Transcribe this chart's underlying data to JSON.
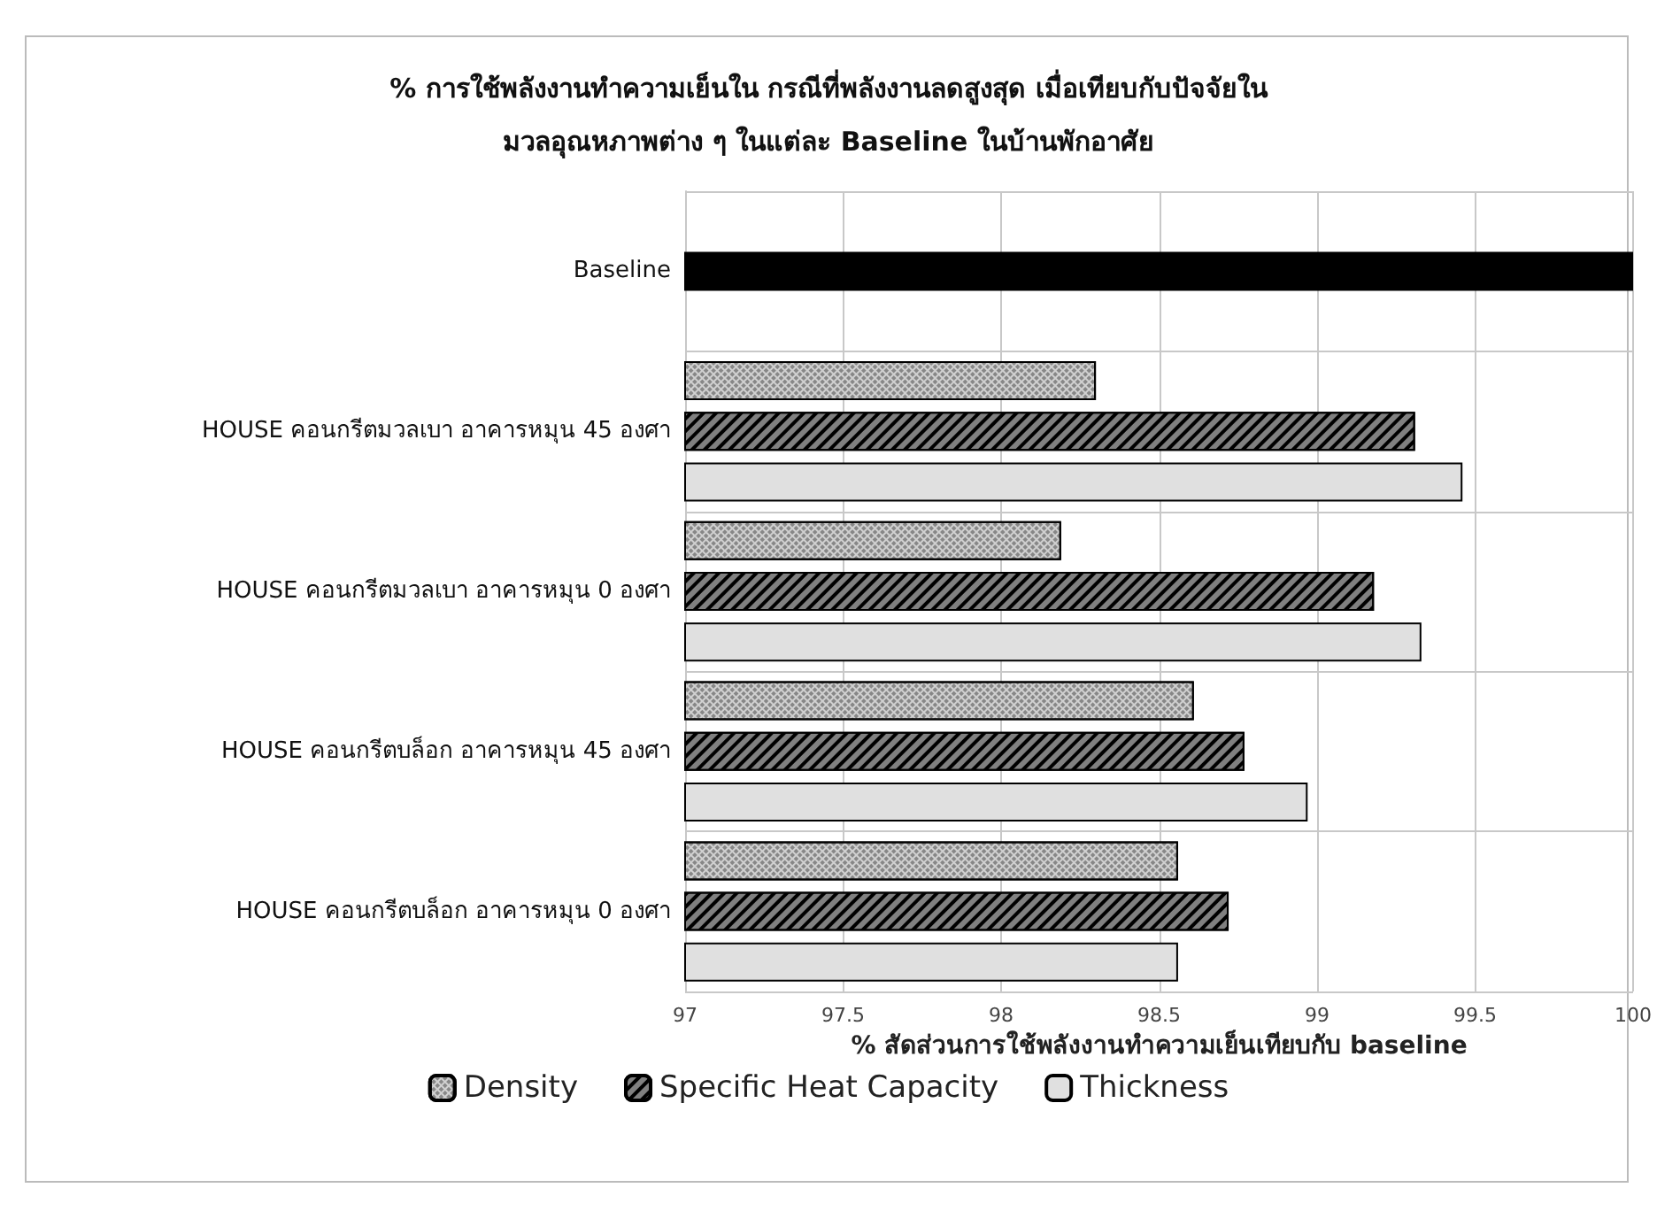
{
  "chart_data": {
    "type": "bar",
    "orientation": "horizontal",
    "title": "% การใช้พลังงานทำความเย็นใน กรณีที่พลังงานลดสูงสุด เมื่อเทียบกับปัจจัยใน\nมวลอุณหภาพต่าง ๆ ในแต่ละ Baseline ในบ้านพักอาศัย",
    "xlabel": "% สัดส่วนการใช้พลังงานทำความเย็นเทียบกับ baseline",
    "categories": [
      "Baseline",
      "HOUSE คอนกรีตมวลเบา อาคารหมุน 45 องศา",
      "HOUSE คอนกรีตมวลเบา อาคารหมุน 0 องศา",
      "HOUSE คอนกรีตบล็อก อาคารหมุน 45 องศา",
      "HOUSE คอนกรีตบล็อก อาคารหมุน 0 องศา"
    ],
    "series": [
      {
        "name": "Density",
        "color": "#d0d0d0",
        "values": [
          null,
          98.3,
          98.19,
          98.61,
          98.56
        ]
      },
      {
        "name": "Specific Heat Capacity",
        "color": "#808080",
        "values": [
          null,
          99.31,
          99.18,
          98.77,
          98.72
        ]
      },
      {
        "name": "Thickness",
        "color": "#e0e0e0",
        "values": [
          null,
          99.46,
          99.33,
          98.97,
          98.56
        ]
      },
      {
        "color": "#000000",
        "values": [
          100,
          null,
          null,
          null,
          null
        ]
      }
    ],
    "xlim": [
      97,
      100
    ],
    "xticks": [
      97,
      97.5,
      98,
      98.5,
      99,
      99.5,
      100
    ],
    "grid": true,
    "legend": "bottom"
  }
}
